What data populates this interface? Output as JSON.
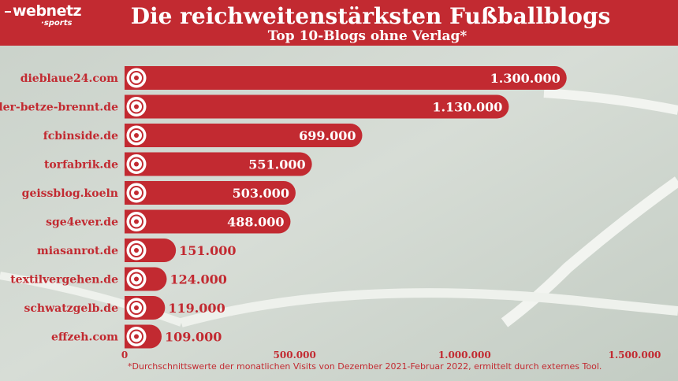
{
  "header": {
    "logo_brand": "webnetz",
    "logo_sub": "sports",
    "title": "Die reichweitenstärksten Fußballblogs",
    "subtitle": "Top 10-Blogs ohne Verlag*"
  },
  "footnote": "*Durchschnittswerte der monatlichen Visits von Dezember 2021-Februar 2022, ermittelt durch externes Tool.",
  "colors": {
    "accent": "#c22a31",
    "bar_label_light": "#ffffff",
    "pitch": "#cfd6cf"
  },
  "chart_data": {
    "type": "bar",
    "orientation": "horizontal",
    "categories": [
      "dieblaue24.com",
      "der-betze-brennt.de",
      "fcbinside.de",
      "torfabrik.de",
      "geissblog.koeln",
      "sge4ever.de",
      "miasanrot.de",
      "textilvergehen.de",
      "schwatzgelb.de",
      "effzeh.com"
    ],
    "values": [
      1300000,
      1130000,
      699000,
      551000,
      503000,
      488000,
      151000,
      124000,
      119000,
      109000
    ],
    "value_labels": [
      "1.300.000",
      "1.130.000",
      "699.000",
      "551.000",
      "503.000",
      "488.000",
      "151.000",
      "124.000",
      "119.000",
      "109.000"
    ],
    "bar_icons": [
      "tsv1860-crest-icon",
      "fck-crest-icon",
      "fcbayern-crest-icon",
      "gladbach-crest-icon",
      "koeln-crest-icon",
      "eintracht-crest-icon",
      "fcbayern-crest-icon",
      "union-crest-icon",
      "bvb-crest-icon",
      "koeln-crest-icon"
    ],
    "x_ticks": [
      0,
      500000,
      1000000,
      1500000
    ],
    "x_tick_labels": [
      "0",
      "500.000",
      "1.000.000",
      "1.500.000"
    ],
    "xlim": [
      0,
      1500000
    ],
    "xlabel": "",
    "ylabel": "",
    "grid": false,
    "legend": "none"
  }
}
